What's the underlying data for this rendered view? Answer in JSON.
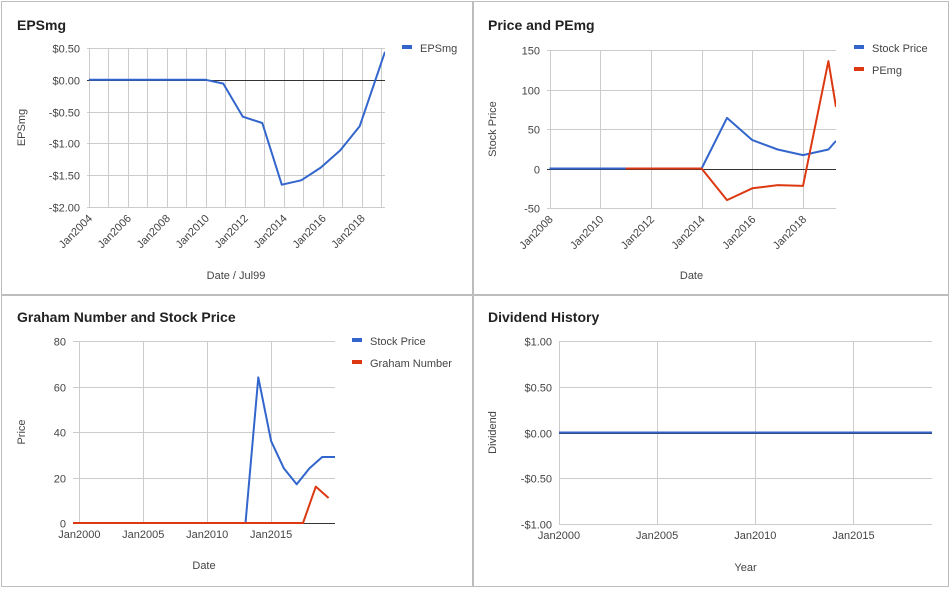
{
  "colors": {
    "blue": "#3366cc",
    "red": "#dc3912"
  },
  "chart_data": [
    {
      "id": "eps",
      "type": "line",
      "title": "EPSmg",
      "xlabel": "Date / Jul99",
      "ylabel": "EPSmg",
      "xlim": [
        2003.9,
        2019.2
      ],
      "ylim": [
        -2.0,
        0.5
      ],
      "x_ticks": [
        {
          "v": 2004,
          "label": "Jan2004"
        },
        {
          "v": 2006,
          "label": "Jan2006"
        },
        {
          "v": 2008,
          "label": "Jan2008"
        },
        {
          "v": 2010,
          "label": "Jan2010"
        },
        {
          "v": 2012,
          "label": "Jan2012"
        },
        {
          "v": 2014,
          "label": "Jan2014"
        },
        {
          "v": 2016,
          "label": "Jan2016"
        },
        {
          "v": 2018,
          "label": "Jan2018"
        }
      ],
      "x_grid": [
        2004,
        2005,
        2006,
        2007,
        2008,
        2009,
        2010,
        2011,
        2012,
        2013,
        2014,
        2015,
        2016,
        2017,
        2018,
        2019
      ],
      "y_ticks": [
        {
          "v": 0.5,
          "label": "$0.50"
        },
        {
          "v": 0.0,
          "label": "$0.00"
        },
        {
          "v": -0.5,
          "label": "-$0.50"
        },
        {
          "v": -1.0,
          "label": "-$1.00"
        },
        {
          "v": -1.5,
          "label": "-$1.50"
        },
        {
          "v": -2.0,
          "label": "-$2.00"
        }
      ],
      "series": [
        {
          "name": "EPSmg",
          "color": "blue",
          "x": [
            2004,
            2005,
            2006,
            2007,
            2008,
            2009,
            2010,
            2010.9,
            2011.9,
            2012.9,
            2013.9,
            2014.9,
            2015.9,
            2016.9,
            2017.9,
            2019.2
          ],
          "y": [
            0,
            0,
            0,
            0,
            0,
            0,
            0,
            -0.06,
            -0.58,
            -0.68,
            -1.65,
            -1.58,
            -1.38,
            -1.11,
            -0.73,
            0.44
          ]
        }
      ]
    },
    {
      "id": "price_pe",
      "type": "line",
      "title": "Price and PEmg",
      "xlabel": "Date",
      "ylabel": "Stock Price",
      "xlim": [
        2007.9,
        2019.3
      ],
      "ylim": [
        -50,
        150
      ],
      "x_ticks": [
        {
          "v": 2008,
          "label": "Jan2008"
        },
        {
          "v": 2010,
          "label": "Jan2010"
        },
        {
          "v": 2012,
          "label": "Jan2012"
        },
        {
          "v": 2014,
          "label": "Jan2014"
        },
        {
          "v": 2016,
          "label": "Jan2016"
        },
        {
          "v": 2018,
          "label": "Jan2018"
        }
      ],
      "x_grid": [
        2008,
        2010,
        2012,
        2014,
        2016,
        2018
      ],
      "y_ticks": [
        {
          "v": 150,
          "label": "150"
        },
        {
          "v": 100,
          "label": "100"
        },
        {
          "v": 50,
          "label": "50"
        },
        {
          "v": 0,
          "label": "0"
        },
        {
          "v": -50,
          "label": "-50"
        }
      ],
      "series": [
        {
          "name": "Stock Price",
          "color": "blue",
          "x": [
            2008,
            2009,
            2010,
            2011,
            2012,
            2013,
            2014,
            2015,
            2016,
            2017,
            2018,
            2019,
            2019.3
          ],
          "y": [
            0,
            0,
            0,
            0,
            0,
            0,
            0,
            64,
            36,
            24,
            17,
            24,
            35
          ]
        },
        {
          "name": "PEmg",
          "color": "red",
          "x": [
            2011,
            2012,
            2013,
            2014,
            2015,
            2016,
            2017,
            2018,
            2019,
            2019.3
          ],
          "y": [
            0,
            0,
            0,
            0,
            -40,
            -25,
            -21,
            -22,
            136,
            78
          ]
        }
      ]
    },
    {
      "id": "graham",
      "type": "line",
      "title": "Graham Number and Stock Price",
      "xlabel": "Date",
      "ylabel": "Price",
      "xlim": [
        1999.5,
        2020.0
      ],
      "ylim": [
        0,
        80
      ],
      "x_ticks": [
        {
          "v": 2000,
          "label": "Jan2000"
        },
        {
          "v": 2005,
          "label": "Jan2005"
        },
        {
          "v": 2010,
          "label": "Jan2010"
        },
        {
          "v": 2015,
          "label": "Jan2015"
        }
      ],
      "x_grid": [
        2000,
        2005,
        2010,
        2015
      ],
      "y_ticks": [
        {
          "v": 80,
          "label": "80"
        },
        {
          "v": 60,
          "label": "60"
        },
        {
          "v": 40,
          "label": "40"
        },
        {
          "v": 20,
          "label": "20"
        },
        {
          "v": 0,
          "label": "0"
        }
      ],
      "series": [
        {
          "name": "Stock Price",
          "color": "blue",
          "x": [
            1999.5,
            2013,
            2014,
            2015,
            2016,
            2017,
            2018,
            2019,
            2020
          ],
          "y": [
            0,
            0,
            64,
            36,
            24,
            17,
            24,
            29,
            29
          ]
        },
        {
          "name": "Graham Number",
          "color": "red",
          "x": [
            1999.5,
            2017.5,
            2018.5,
            2019.5
          ],
          "y": [
            0,
            0,
            16,
            11
          ]
        }
      ]
    },
    {
      "id": "dividend",
      "type": "line",
      "title": "Dividend History",
      "xlabel": "Year",
      "ylabel": "Dividend",
      "xlim": [
        2000,
        2019
      ],
      "ylim": [
        -1.0,
        1.0
      ],
      "x_ticks": [
        {
          "v": 2000,
          "label": "Jan2000"
        },
        {
          "v": 2005,
          "label": "Jan2005"
        },
        {
          "v": 2010,
          "label": "Jan2010"
        },
        {
          "v": 2015,
          "label": "Jan2015"
        }
      ],
      "x_grid": [
        2000,
        2005,
        2010,
        2015
      ],
      "y_ticks": [
        {
          "v": 1.0,
          "label": "$1.00"
        },
        {
          "v": 0.5,
          "label": "$0.50"
        },
        {
          "v": 0.0,
          "label": "$0.00"
        },
        {
          "v": -0.5,
          "label": "-$0.50"
        },
        {
          "v": -1.0,
          "label": "-$1.00"
        }
      ],
      "series": [
        {
          "name": "",
          "color": "blue",
          "x": [
            2000,
            2019
          ],
          "y": [
            0,
            0
          ]
        }
      ]
    }
  ]
}
